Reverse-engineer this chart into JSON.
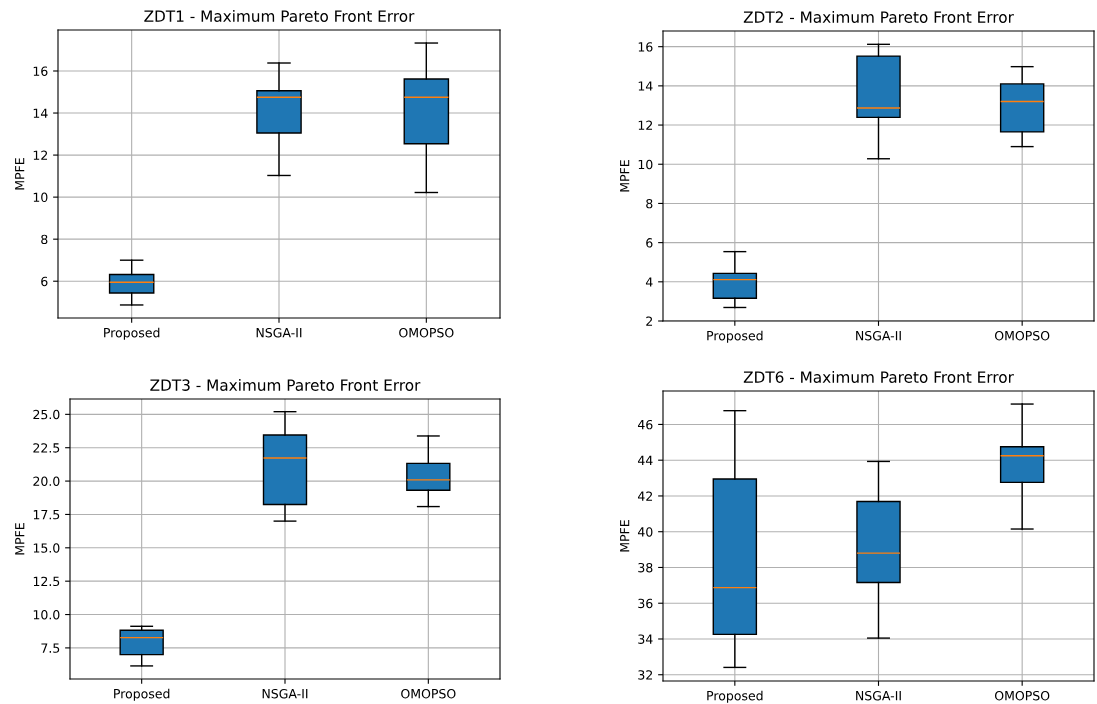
{
  "chart_data": [
    {
      "type": "box",
      "title": "ZDT1 - Maximum Pareto Front Error",
      "ylabel": "MPFE",
      "categories": [
        "Proposed",
        "NSGA-II",
        "OMOPSO"
      ],
      "ylim": [
        4.25,
        17.95
      ],
      "yticks": [
        6,
        8,
        10,
        12,
        14,
        16
      ],
      "grid": true,
      "series": [
        {
          "color": "#1f77b4",
          "boxes": [
            {
              "low": 4.87,
              "q1": 5.44,
              "median": 5.95,
              "q3": 6.32,
              "high": 7.0
            },
            {
              "low": 11.03,
              "q1": 13.05,
              "median": 14.75,
              "q3": 15.06,
              "high": 16.38
            },
            {
              "low": 10.22,
              "q1": 12.54,
              "median": 14.75,
              "q3": 15.62,
              "high": 17.33
            }
          ]
        }
      ]
    },
    {
      "type": "box",
      "title": "ZDT2 - Maximum Pareto Front Error",
      "ylabel": "MPFE",
      "categories": [
        "Proposed",
        "NSGA-II",
        "OMOPSO"
      ],
      "ylim": [
        2.0,
        16.8
      ],
      "yticks": [
        2,
        4,
        6,
        8,
        10,
        12,
        14,
        16
      ],
      "grid": true,
      "series": [
        {
          "color": "#1f77b4",
          "boxes": [
            {
              "low": 2.69,
              "q1": 3.16,
              "median": 4.11,
              "q3": 4.43,
              "high": 5.54
            },
            {
              "low": 10.28,
              "q1": 12.39,
              "median": 12.87,
              "q3": 15.52,
              "high": 16.12
            },
            {
              "low": 10.9,
              "q1": 11.65,
              "median": 13.2,
              "q3": 14.1,
              "high": 14.98
            }
          ]
        }
      ]
    },
    {
      "type": "box",
      "title": "ZDT3 - Maximum Pareto Front Error",
      "ylabel": "MPFE",
      "categories": [
        "Proposed",
        "NSGA-II",
        "OMOPSO"
      ],
      "ylim": [
        5.17,
        26.15
      ],
      "yticks": [
        {
          "value": 7.5,
          "label": "7.5"
        },
        {
          "value": 10,
          "label": "10.0"
        },
        {
          "value": 12.5,
          "label": "12.5"
        },
        {
          "value": 15,
          "label": "15.0"
        },
        {
          "value": 17.5,
          "label": "17.5"
        },
        {
          "value": 20,
          "label": "20.0"
        },
        {
          "value": 22.5,
          "label": "22.5"
        },
        {
          "value": 25,
          "label": "25.0"
        }
      ],
      "grid": true,
      "series": [
        {
          "color": "#1f77b4",
          "boxes": [
            {
              "low": 6.15,
              "q1": 7.0,
              "median": 8.27,
              "q3": 8.82,
              "high": 9.12
            },
            {
              "low": 17.0,
              "q1": 18.24,
              "median": 21.73,
              "q3": 23.45,
              "high": 25.2
            },
            {
              "low": 18.09,
              "q1": 19.31,
              "median": 20.09,
              "q3": 21.33,
              "high": 23.38
            }
          ]
        }
      ]
    },
    {
      "type": "box",
      "title": "ZDT6 - Maximum Pareto Front Error",
      "ylabel": "MPFE",
      "categories": [
        "Proposed",
        "NSGA-II",
        "OMOPSO"
      ],
      "ylim": [
        31.65,
        47.87
      ],
      "yticks": [
        32,
        34,
        36,
        38,
        40,
        42,
        44,
        46
      ],
      "grid": true,
      "series": [
        {
          "color": "#1f77b4",
          "boxes": [
            {
              "low": 32.41,
              "q1": 34.26,
              "median": 36.87,
              "q3": 42.95,
              "high": 46.77
            },
            {
              "low": 34.05,
              "q1": 37.16,
              "median": 38.8,
              "q3": 41.69,
              "high": 43.93
            },
            {
              "low": 40.15,
              "q1": 42.76,
              "median": 44.25,
              "q3": 44.75,
              "high": 47.14
            }
          ]
        }
      ]
    }
  ]
}
